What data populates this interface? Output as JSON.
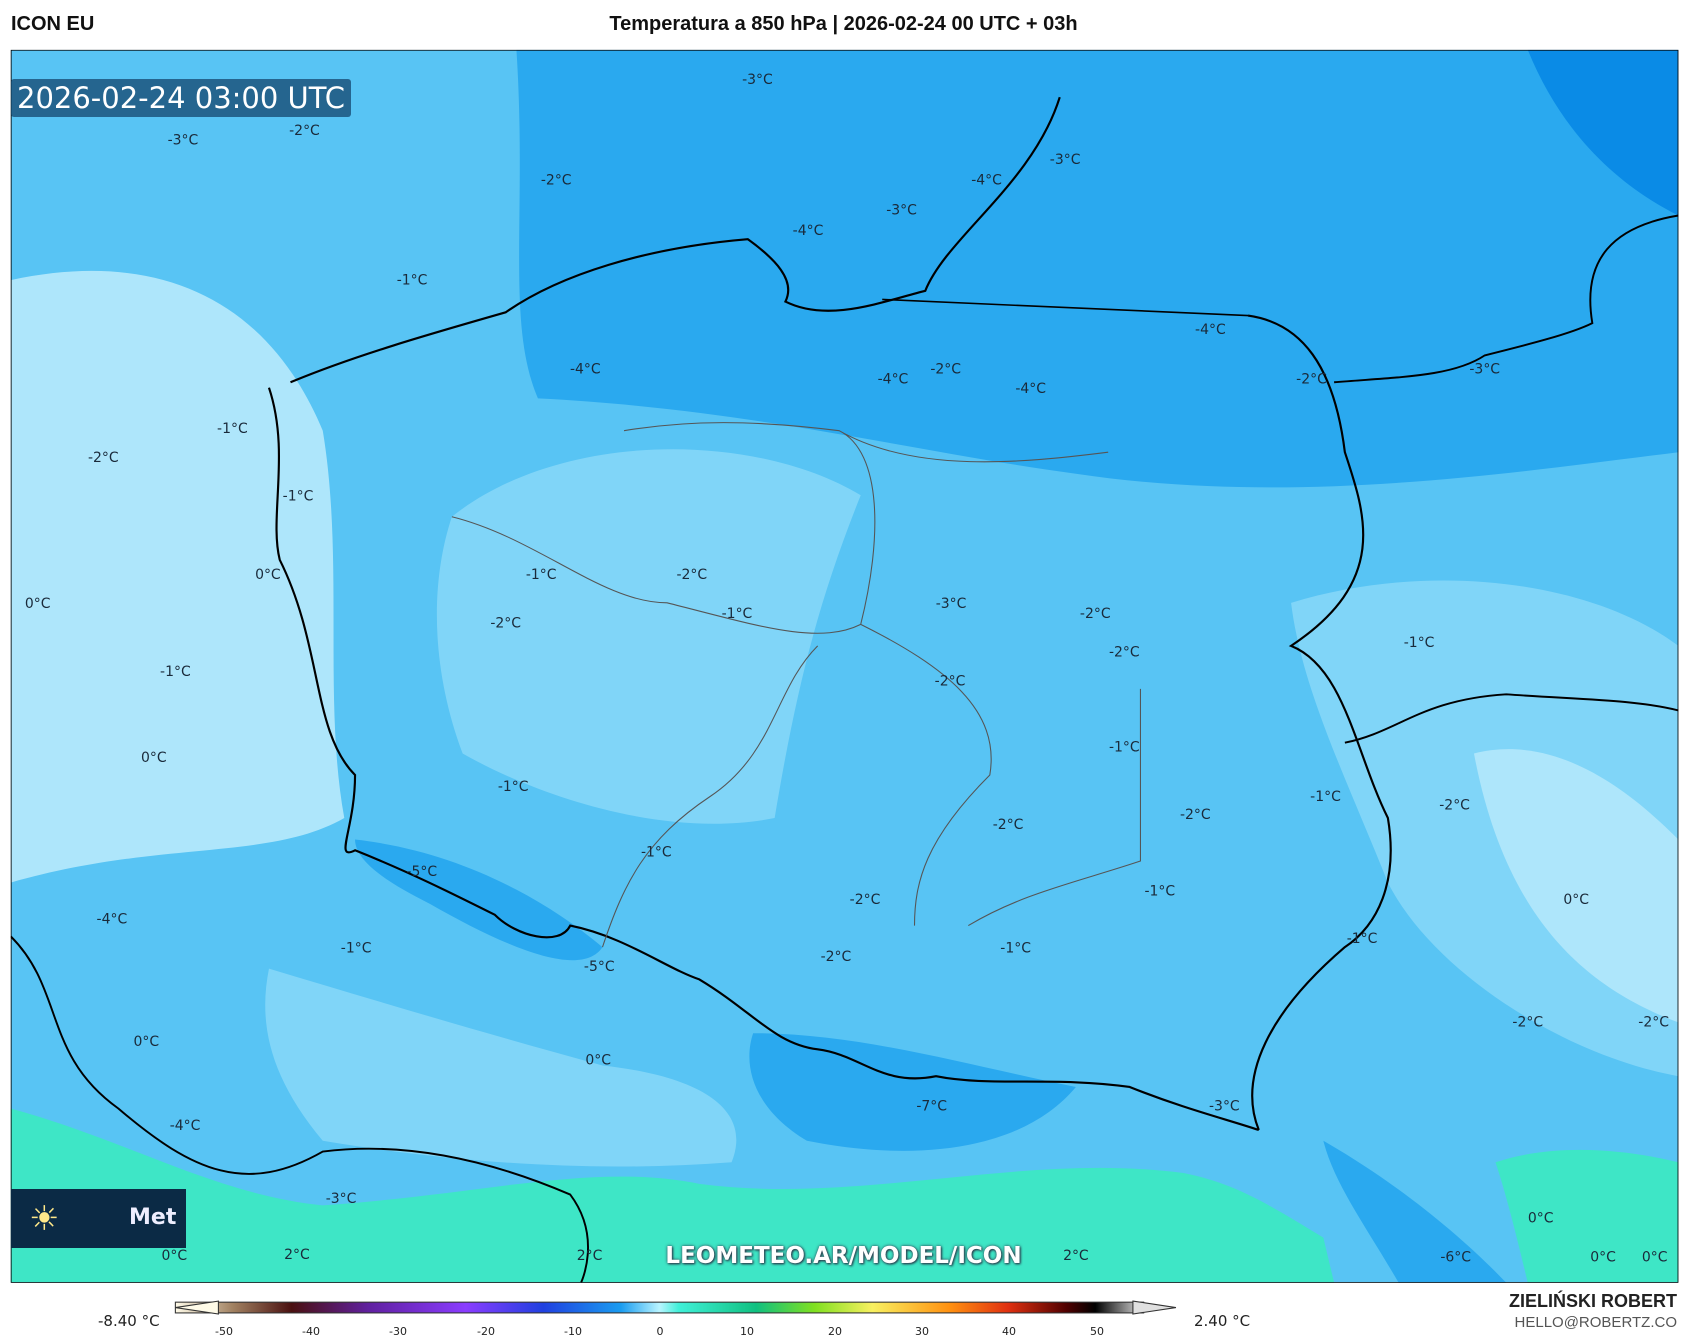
{
  "header": {
    "model": "ICON EU",
    "title": "Temperatura a 850 hPa | 2026-02-24 00 UTC + 03h"
  },
  "map": {
    "valid_time": "2026-02-24 03:00 UTC",
    "watermark": "LEOMETEO.AR/MODEL/ICON",
    "logo_text": "Met",
    "labels": [
      "-3°C",
      "-3°C",
      "-2°C",
      "-2°C",
      "-4°C",
      "-3°C",
      "-3°C",
      "-4°C",
      "-1°C",
      "-4°C",
      "-4°C",
      "-4°C",
      "-2°C",
      "-4°C",
      "-2°C",
      "-3°C",
      "-1°C",
      "-2°C",
      "-1°C",
      "0°C",
      "-1°C",
      "-2°C",
      "0°C",
      "-2°C",
      "-1°C",
      "-3°C",
      "-2°C",
      "-2°C",
      "-1°C",
      "-1°C",
      "-2°C",
      "0°C",
      "-1°C",
      "-1°C",
      "-1°C",
      "-2°C",
      "-2°C",
      "-2°C",
      "-1°C",
      "-5°C",
      "-1°C",
      "-2°C",
      "0°C",
      "-4°C",
      "-1°C",
      "-1°C",
      "-1°C",
      "-2°C",
      "-5°C",
      "-2°C",
      "-2°C",
      "0°C",
      "0°C",
      "-7°C",
      "-3°C",
      "-4°C",
      "-3°C",
      "0°C",
      "0°C",
      "2°C",
      "2°C",
      "2°C",
      "-6°C",
      "0°C",
      "0°C"
    ],
    "colors": {
      "light": "#aee6fb",
      "mid": "#80d5f8",
      "blue": "#58c4f4",
      "deep": "#2aa9ef",
      "deepest": "#0a8be6",
      "green": "#3ee6c6"
    }
  },
  "colorbar": {
    "min_label": "-8.40 °C",
    "max_label": "2.40 °C",
    "ticks": [
      "-50",
      "-40",
      "-30",
      "-20",
      "-10",
      "0",
      "10",
      "20",
      "30",
      "40",
      "50"
    ],
    "unit": "°C"
  },
  "credits": {
    "author": "ZIELIŃSKI ROBERT",
    "email": "HELLO@ROBERTZ.CO"
  }
}
